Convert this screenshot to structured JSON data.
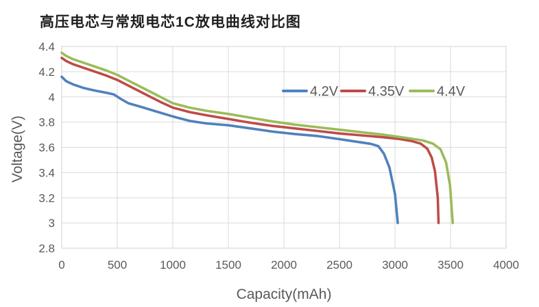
{
  "page": {
    "background": "#ffffff"
  },
  "chart_data": {
    "type": "line",
    "title": "高压电芯与常规电芯1C放电曲线对比图",
    "xlabel": "Capacity(mAh)",
    "ylabel": "Voltage(V)",
    "xlim": [
      0,
      4000
    ],
    "ylim": [
      2.8,
      4.4
    ],
    "xticks": [
      0,
      500,
      1000,
      1500,
      2000,
      2500,
      3000,
      3500,
      4000
    ],
    "yticks": [
      2.8,
      3,
      3.2,
      3.4,
      3.6,
      3.8,
      4,
      4.2,
      4.4
    ],
    "grid": true,
    "legend": {
      "position": "inside-top-right"
    },
    "colors": {
      "grid": "#d9d9d9",
      "plot_border": "#d9d9d9",
      "axis_text": "#595959",
      "title_text": "#1f1f1f"
    },
    "series": [
      {
        "name": "4.2V",
        "color": "#4f81bd",
        "points": [
          [
            0,
            4.16
          ],
          [
            40,
            4.125
          ],
          [
            100,
            4.1
          ],
          [
            200,
            4.07
          ],
          [
            300,
            4.05
          ],
          [
            390,
            4.035
          ],
          [
            470,
            4.02
          ],
          [
            530,
            3.985
          ],
          [
            600,
            3.95
          ],
          [
            700,
            3.925
          ],
          [
            850,
            3.885
          ],
          [
            1000,
            3.845
          ],
          [
            1150,
            3.81
          ],
          [
            1300,
            3.79
          ],
          [
            1500,
            3.775
          ],
          [
            1700,
            3.75
          ],
          [
            1900,
            3.725
          ],
          [
            2100,
            3.705
          ],
          [
            2300,
            3.69
          ],
          [
            2500,
            3.665
          ],
          [
            2650,
            3.645
          ],
          [
            2780,
            3.628
          ],
          [
            2850,
            3.61
          ],
          [
            2900,
            3.55
          ],
          [
            2950,
            3.44
          ],
          [
            3000,
            3.23
          ],
          [
            3025,
            3.0
          ]
        ]
      },
      {
        "name": "4.35V",
        "color": "#be4b48",
        "points": [
          [
            0,
            4.31
          ],
          [
            40,
            4.285
          ],
          [
            100,
            4.26
          ],
          [
            250,
            4.215
          ],
          [
            400,
            4.17
          ],
          [
            500,
            4.135
          ],
          [
            600,
            4.09
          ],
          [
            700,
            4.045
          ],
          [
            800,
            4.0
          ],
          [
            900,
            3.955
          ],
          [
            1000,
            3.915
          ],
          [
            1150,
            3.88
          ],
          [
            1300,
            3.855
          ],
          [
            1500,
            3.825
          ],
          [
            1700,
            3.795
          ],
          [
            1900,
            3.77
          ],
          [
            2100,
            3.75
          ],
          [
            2300,
            3.73
          ],
          [
            2500,
            3.71
          ],
          [
            2700,
            3.695
          ],
          [
            2900,
            3.68
          ],
          [
            3050,
            3.665
          ],
          [
            3150,
            3.65
          ],
          [
            3230,
            3.63
          ],
          [
            3290,
            3.59
          ],
          [
            3330,
            3.52
          ],
          [
            3360,
            3.41
          ],
          [
            3385,
            3.2
          ],
          [
            3392,
            3.0
          ]
        ]
      },
      {
        "name": "4.4V",
        "color": "#9bbb59",
        "points": [
          [
            0,
            4.35
          ],
          [
            40,
            4.325
          ],
          [
            100,
            4.3
          ],
          [
            250,
            4.255
          ],
          [
            400,
            4.21
          ],
          [
            500,
            4.175
          ],
          [
            600,
            4.13
          ],
          [
            700,
            4.085
          ],
          [
            800,
            4.04
          ],
          [
            900,
            3.995
          ],
          [
            1000,
            3.95
          ],
          [
            1150,
            3.915
          ],
          [
            1300,
            3.89
          ],
          [
            1500,
            3.865
          ],
          [
            1700,
            3.835
          ],
          [
            1900,
            3.805
          ],
          [
            2100,
            3.78
          ],
          [
            2300,
            3.76
          ],
          [
            2500,
            3.74
          ],
          [
            2700,
            3.72
          ],
          [
            2900,
            3.7
          ],
          [
            3100,
            3.675
          ],
          [
            3250,
            3.655
          ],
          [
            3340,
            3.63
          ],
          [
            3410,
            3.585
          ],
          [
            3460,
            3.48
          ],
          [
            3495,
            3.3
          ],
          [
            3520,
            3.0
          ]
        ]
      }
    ]
  }
}
